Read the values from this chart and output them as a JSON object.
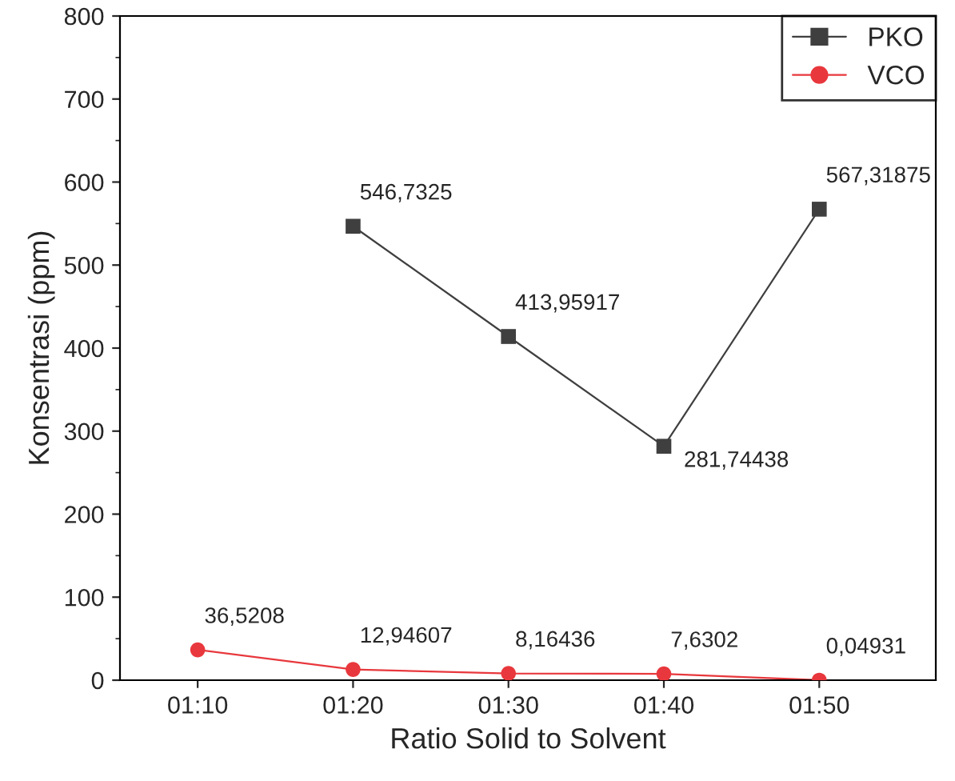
{
  "chart_data": {
    "type": "line",
    "xlabel": "Ratio Solid to Solvent",
    "ylabel": "Konsentrasi (ppm)",
    "categories": [
      "01:10",
      "01:20",
      "01:30",
      "01:40",
      "01:50"
    ],
    "series": [
      {
        "name": "PKO",
        "color": "#3f3f3f",
        "marker": "square",
        "values": [
          null,
          546.7325,
          413.95917,
          281.74438,
          567.31875
        ],
        "value_labels": [
          null,
          "546,7325",
          "413,95917",
          "281,74438",
          "567,31875"
        ]
      },
      {
        "name": "VCO",
        "color": "#e8383d",
        "marker": "circle",
        "values": [
          36.5208,
          12.94607,
          8.16436,
          7.6302,
          0.04931
        ],
        "value_labels": [
          "36,5208",
          "12,94607",
          "8,16436",
          "7,6302",
          "0,04931"
        ]
      }
    ],
    "ylim": [
      0,
      800
    ],
    "yticks": [
      0,
      100,
      200,
      300,
      400,
      500,
      600,
      700,
      800
    ],
    "legend": "top right",
    "grid": false
  }
}
